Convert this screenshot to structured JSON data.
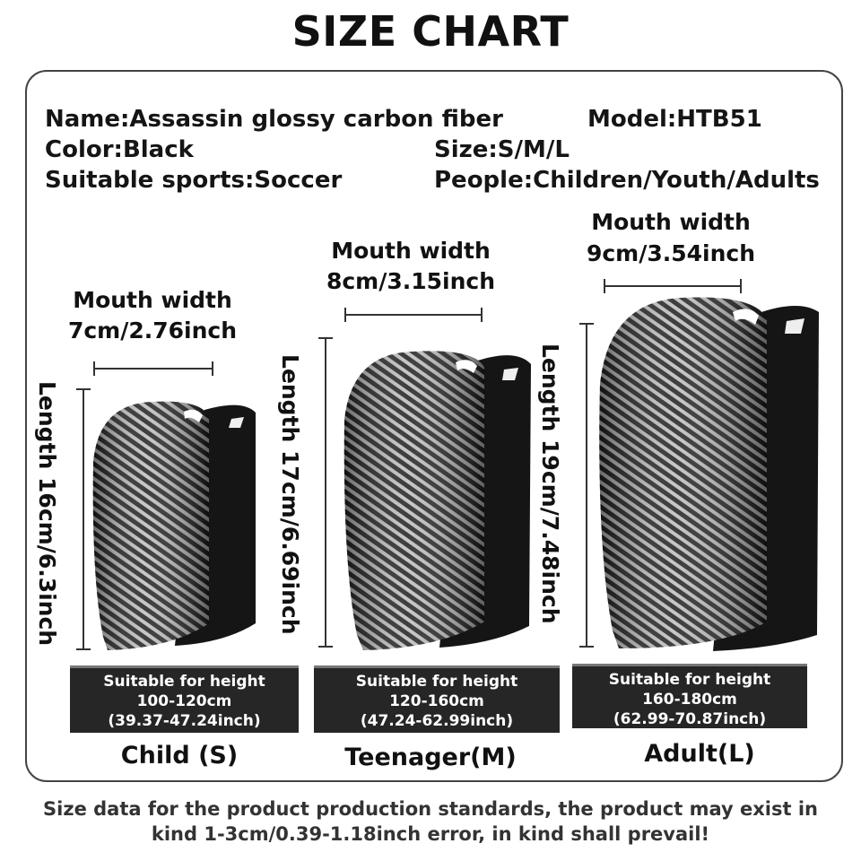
{
  "title": "SIZE CHART",
  "info": {
    "name": "Name:Assassin glossy carbon fiber",
    "model": "Model:HTB51",
    "color": "Color:Black",
    "size": "Size:S/M/L",
    "sports": "Suitable sports:Soccer",
    "people": "People:Children/Youth/Adults"
  },
  "sizes": [
    {
      "mouth_label": "Mouth width",
      "mouth_value": "7cm/2.76inch",
      "length": "Length 16cm/6.3inch",
      "band_title": "Suitable for height",
      "band_cm": "100-120cm",
      "band_inch": "(39.37-47.24inch)",
      "name": "Child (S)"
    },
    {
      "mouth_label": "Mouth width",
      "mouth_value": "8cm/3.15inch",
      "length": "Length 17cm/6.69inch",
      "band_title": "Suitable for height",
      "band_cm": "120-160cm",
      "band_inch": "(47.24-62.99inch)",
      "name": "Teenager(M)"
    },
    {
      "mouth_label": "Mouth width",
      "mouth_value": "9cm/3.54inch",
      "length": "Length 19cm/7.48inch",
      "band_title": "Suitable for height",
      "band_cm": "160-180cm",
      "band_inch": "(62.99-70.87inch)",
      "name": "Adult(L)"
    }
  ],
  "note": {
    "line1": "Size data for the product production standards, the product may exist in",
    "line2": "kind 1-3cm/0.39-1.18inch error, in kind shall prevail!"
  },
  "colors": {
    "band": "#262626",
    "text": "#111111",
    "carbon_dark": "#1a1a1a",
    "carbon_light": "#c8c8c8"
  }
}
